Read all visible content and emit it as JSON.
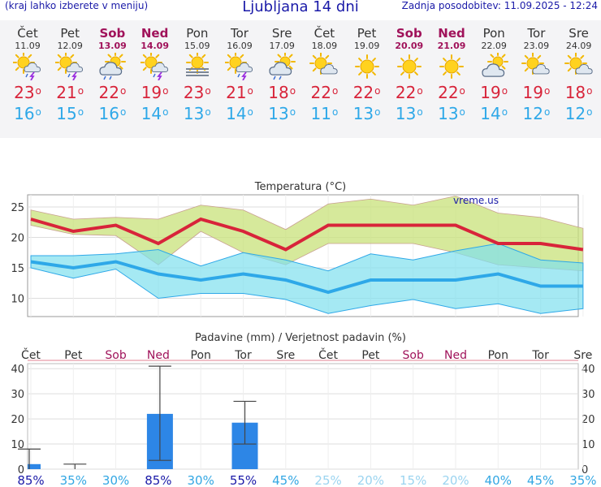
{
  "header": {
    "menu_hint": "(kraj lahko izberete v meniju)",
    "title": "Ljubljana 14 dni",
    "updated": "Zadnja posodobitev: 11.09.2025 - 12:24"
  },
  "days": [
    {
      "name": "Čet",
      "date": "11.09",
      "weekend": false,
      "icon": "sun-cloud-storm-icon",
      "max": 23,
      "min": 16
    },
    {
      "name": "Pet",
      "date": "12.09",
      "weekend": false,
      "icon": "sun-cloud-storm-icon",
      "max": 21,
      "min": 15
    },
    {
      "name": "Sob",
      "date": "13.09",
      "weekend": true,
      "icon": "sun-cloud-rain-icon",
      "max": 22,
      "min": 16
    },
    {
      "name": "Ned",
      "date": "14.09",
      "weekend": true,
      "icon": "sun-cloud-storm-icon",
      "max": 19,
      "min": 14
    },
    {
      "name": "Pon",
      "date": "15.09",
      "weekend": false,
      "icon": "sun-fog-icon",
      "max": 23,
      "min": 13
    },
    {
      "name": "Tor",
      "date": "16.09",
      "weekend": false,
      "icon": "sun-cloud-storm-icon",
      "max": 21,
      "min": 14
    },
    {
      "name": "Sre",
      "date": "17.09",
      "weekend": false,
      "icon": "sun-cloud-rain-icon",
      "max": 18,
      "min": 13
    },
    {
      "name": "Čet",
      "date": "18.09",
      "weekend": false,
      "icon": "sun-cloud-icon",
      "max": 22,
      "min": 11
    },
    {
      "name": "Pet",
      "date": "19.09",
      "weekend": false,
      "icon": "sun-icon",
      "max": 22,
      "min": 13
    },
    {
      "name": "Sob",
      "date": "20.09",
      "weekend": true,
      "icon": "sun-icon",
      "max": 22,
      "min": 13
    },
    {
      "name": "Ned",
      "date": "21.09",
      "weekend": true,
      "icon": "sun-icon",
      "max": 22,
      "min": 13
    },
    {
      "name": "Pon",
      "date": "22.09",
      "weekend": false,
      "icon": "cloud-sun-icon",
      "max": 19,
      "min": 14
    },
    {
      "name": "Tor",
      "date": "23.09",
      "weekend": false,
      "icon": "sun-cloud-icon",
      "max": 19,
      "min": 12
    },
    {
      "name": "Sre",
      "date": "24.09",
      "weekend": false,
      "icon": "sun-cloud-icon",
      "max": 18,
      "min": 12
    }
  ],
  "colors": {
    "max_line": "#d8243a",
    "min_line": "#2ea8e8",
    "max_band": "#c8e27a",
    "min_band": "#7fe0ee",
    "overlap": "#6fcf6f",
    "bar": "#2d86e6",
    "weekend": "#a0125a",
    "prob_strong": "#1a1aa8",
    "prob_light": "#9bd4f0"
  },
  "chart_data": [
    {
      "type": "line",
      "title": "Temperatura (°C)",
      "watermark": "vreme.us",
      "ylim": [
        7,
        27
      ],
      "yticks": [
        10,
        15,
        20,
        25
      ],
      "series": [
        {
          "name": "max",
          "values": [
            23,
            21,
            22,
            19,
            23,
            21,
            18,
            22,
            22,
            22,
            22,
            19,
            19,
            18
          ],
          "band_high": [
            24.5,
            23,
            23.3,
            23,
            25.3,
            24.5,
            21.3,
            25.5,
            26.3,
            25.3,
            26.8,
            24,
            23.3,
            21.5
          ],
          "band_low": [
            22,
            20.5,
            20.3,
            15.5,
            21,
            17.5,
            15.5,
            19,
            19,
            19,
            17.5,
            15.5,
            15,
            14.5
          ]
        },
        {
          "name": "min",
          "values": [
            16,
            15,
            16,
            14,
            13,
            14,
            13,
            11,
            13,
            13,
            13,
            14,
            12,
            12
          ],
          "band_high": [
            17,
            17,
            17.3,
            18,
            15.3,
            17.5,
            16.3,
            14.5,
            17.3,
            16.3,
            17.8,
            19,
            16.3,
            15.8
          ],
          "band_low": [
            15,
            13.3,
            14.8,
            10,
            10.8,
            10.8,
            9.8,
            7.5,
            8.8,
            9.8,
            8.3,
            9.1,
            7.5,
            8.3
          ]
        }
      ]
    },
    {
      "type": "bar",
      "title": "Padavine (mm) / Verjetnost padavin (%)",
      "ylim": [
        0,
        42
      ],
      "yticks": [
        0,
        10,
        20,
        30,
        40
      ],
      "categories": [
        "Čet",
        "Pet",
        "Sob",
        "Ned",
        "Pon",
        "Tor",
        "Sre",
        "Čet",
        "Pet",
        "Sob",
        "Ned",
        "Pon",
        "Tor",
        "Sre"
      ],
      "values": [
        2,
        0,
        0,
        22,
        0,
        18.5,
        0,
        0,
        0,
        0,
        0,
        0,
        0,
        0
      ],
      "error_low": [
        0,
        0,
        null,
        3.5,
        null,
        10,
        null,
        null,
        null,
        null,
        null,
        null,
        null,
        null
      ],
      "error_high": [
        8,
        2,
        null,
        41,
        null,
        27,
        null,
        null,
        null,
        null,
        null,
        null,
        null,
        null
      ],
      "probability": [
        "85%",
        "35%",
        "30%",
        "85%",
        "30%",
        "55%",
        "45%",
        "25%",
        "20%",
        "15%",
        "20%",
        "40%",
        "45%",
        "35%"
      ],
      "probability_strength": [
        "strong",
        "mid",
        "mid",
        "strong",
        "mid",
        "strong",
        "mid",
        "light",
        "light",
        "light",
        "light",
        "mid",
        "mid",
        "mid"
      ]
    }
  ]
}
